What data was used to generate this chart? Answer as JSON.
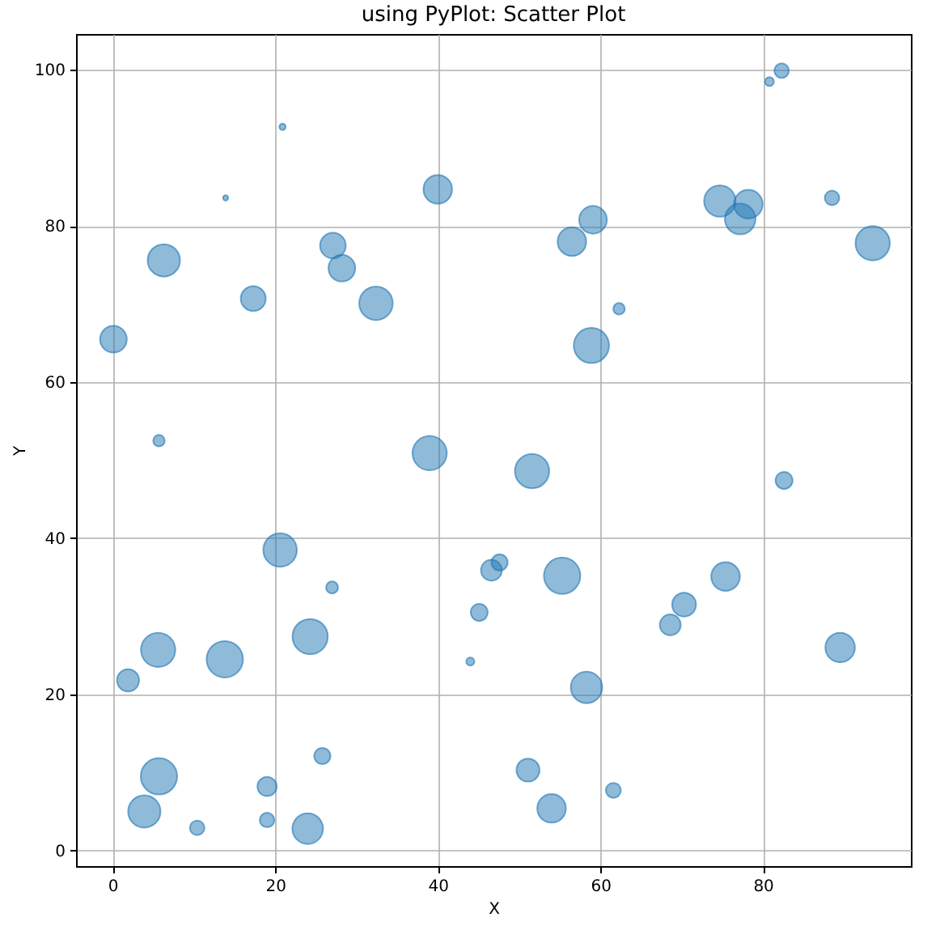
{
  "chart_data": {
    "type": "bubble",
    "title": "using PyPlot: Scatter Plot",
    "xlabel": "X",
    "ylabel": "Y",
    "x": [
      20.9,
      13.9,
      40.0,
      6.3,
      27.1,
      28.2,
      17.3,
      32.4,
      0.1,
      5.7,
      39.0,
      82.3,
      80.8,
      74.7,
      78.2,
      77.2,
      88.5,
      59.1,
      56.5,
      93.5,
      62.3,
      58.9,
      20.6,
      27.0,
      24.3,
      5.6,
      13.8,
      1.9,
      45.1,
      44.0,
      25.8,
      5.7,
      19.0,
      3.9,
      10.4,
      19.0,
      24.0,
      51.6,
      82.6,
      46.6,
      47.6,
      55.3,
      75.4,
      70.3,
      68.6,
      89.5,
      58.3,
      51.1,
      61.6,
      54.0
    ],
    "series": [
      {
        "color": "#1f77b4",
        "values": [
          92.7,
          83.6,
          84.7,
          75.6,
          77.5,
          74.6,
          70.7,
          70.1,
          65.5,
          52.5,
          50.9,
          99.9,
          98.5,
          83.2,
          82.8,
          80.9,
          83.6,
          80.8,
          78.0,
          77.8,
          69.4,
          64.7,
          38.5,
          33.7,
          27.4,
          25.7,
          24.5,
          21.8,
          30.5,
          24.2,
          12.1,
          9.5,
          8.2,
          5.0,
          2.9,
          3.9,
          2.8,
          48.6,
          47.4,
          35.9,
          36.9,
          35.2,
          35.1,
          31.5,
          28.9,
          26.0,
          20.9,
          10.3,
          7.7,
          5.4
        ],
        "sizes": [
          0.03,
          0.02,
          0.62,
          0.79,
          0.5,
          0.54,
          0.47,
          0.85,
          0.54,
          0.1,
          0.89,
          0.16,
          0.06,
          0.75,
          0.62,
          0.71,
          0.16,
          0.58,
          0.62,
          0.89,
          0.1,
          0.94,
          0.85,
          0.11,
          0.94,
          0.89,
          1,
          0.37,
          0.22,
          0.05,
          0.2,
          1,
          0.28,
          0.79,
          0.16,
          0.16,
          0.71,
          0.89,
          0.22,
          0.33,
          0.2,
          1,
          0.62,
          0.43,
          0.33,
          0.66,
          0.75,
          0.4,
          0.17,
          0.62
        ]
      }
    ],
    "xlim": [
      -4.5,
      98.2
    ],
    "ylim": [
      -2,
      104.6
    ],
    "xticks": [
      0,
      20,
      40,
      60,
      80
    ],
    "yticks": [
      0,
      20,
      40,
      60,
      80,
      100
    ],
    "grid": true,
    "marker": "circle"
  }
}
